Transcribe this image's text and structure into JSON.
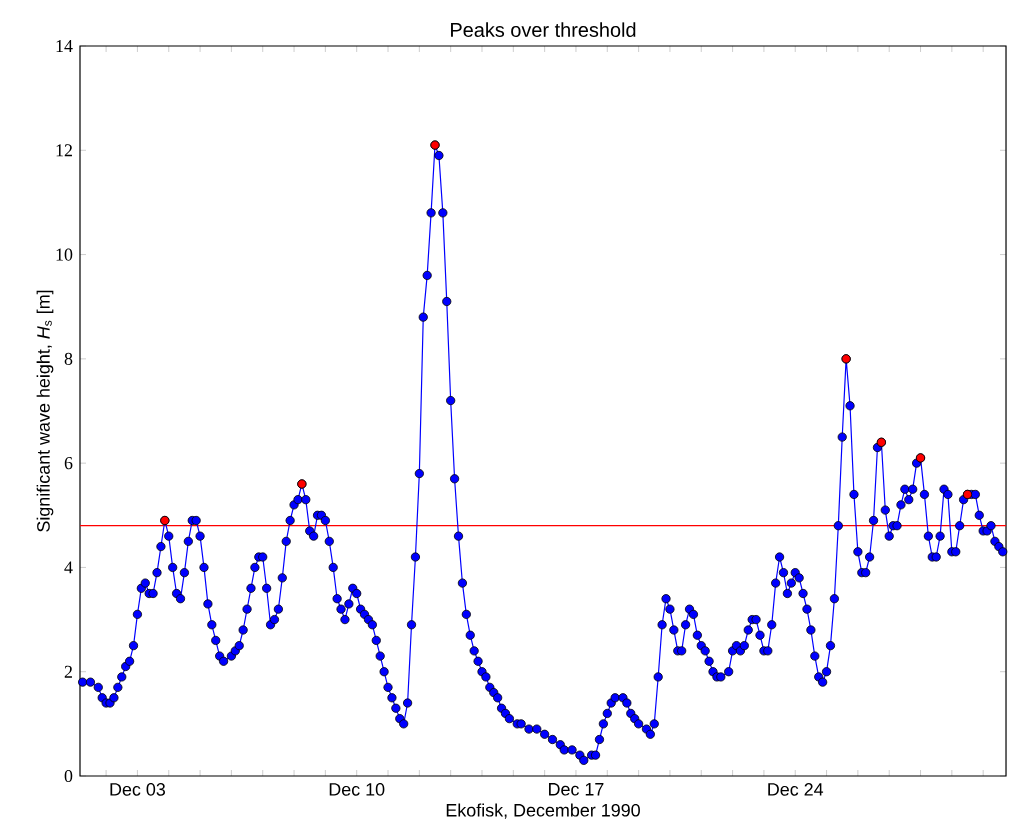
{
  "chart_data": {
    "type": "line",
    "title": "Peaks over threshold",
    "xlabel": "Ekofisk, December 1990",
    "ylabel": "Significant wave height, *H*$_{s}$ [m]",
    "xlim": [
      "1990-12-01T04:00",
      "1990-12-30T17:30"
    ],
    "ylim": [
      0,
      14
    ],
    "yticks": [
      0,
      2,
      4,
      6,
      8,
      10,
      12,
      14
    ],
    "xticks": [
      {
        "value": "1990-12-02",
        "label": null
      },
      {
        "value": "1990-12-03",
        "label": "Dec 03"
      },
      {
        "value": "1990-12-04",
        "label": null
      },
      {
        "value": "1990-12-05",
        "label": null
      },
      {
        "value": "1990-12-06",
        "label": null
      },
      {
        "value": "1990-12-07",
        "label": null
      },
      {
        "value": "1990-12-08",
        "label": null
      },
      {
        "value": "1990-12-09",
        "label": null
      },
      {
        "value": "1990-12-10",
        "label": "Dec 10"
      },
      {
        "value": "1990-12-11",
        "label": null
      },
      {
        "value": "1990-12-12",
        "label": null
      },
      {
        "value": "1990-12-13",
        "label": null
      },
      {
        "value": "1990-12-14",
        "label": null
      },
      {
        "value": "1990-12-15",
        "label": null
      },
      {
        "value": "1990-12-16",
        "label": null
      },
      {
        "value": "1990-12-17",
        "label": "Dec 17"
      },
      {
        "value": "1990-12-18",
        "label": null
      },
      {
        "value": "1990-12-19",
        "label": null
      },
      {
        "value": "1990-12-20",
        "label": null
      },
      {
        "value": "1990-12-21",
        "label": null
      },
      {
        "value": "1990-12-22",
        "label": null
      },
      {
        "value": "1990-12-23",
        "label": null
      },
      {
        "value": "1990-12-24",
        "label": "Dec 24"
      },
      {
        "value": "1990-12-25",
        "label": null
      },
      {
        "value": "1990-12-26",
        "label": null
      },
      {
        "value": "1990-12-27",
        "label": null
      },
      {
        "value": "1990-12-28",
        "label": null
      },
      {
        "value": "1990-12-29",
        "label": null
      },
      {
        "value": "1990-12-30",
        "label": null
      }
    ],
    "grid": false,
    "ref_lines": [
      {
        "axis": "y",
        "value": 4.8,
        "color": "#ff0000",
        "line_style": "solid"
      }
    ],
    "series": [
      {
        "color": "#0000ff",
        "marker": "circle",
        "line_style": "solid",
        "x": [
          "1990-12-01T06:00",
          "1990-12-01T12:00",
          "1990-12-01T18:00",
          "1990-12-01T21:00",
          "1990-12-02T00:00",
          "1990-12-02T03:00",
          "1990-12-02T06:00",
          "1990-12-02T09:00",
          "1990-12-02T12:00",
          "1990-12-02T15:00",
          "1990-12-02T18:00",
          "1990-12-02T21:00",
          "1990-12-03T00:00",
          "1990-12-03T03:00",
          "1990-12-03T06:00",
          "1990-12-03T09:00",
          "1990-12-03T12:00",
          "1990-12-03T15:00",
          "1990-12-03T18:00",
          "1990-12-03T21:00",
          "1990-12-04T00:00",
          "1990-12-04T03:00",
          "1990-12-04T06:00",
          "1990-12-04T09:00",
          "1990-12-04T12:00",
          "1990-12-04T15:00",
          "1990-12-04T18:00",
          "1990-12-04T21:00",
          "1990-12-05T00:00",
          "1990-12-05T03:00",
          "1990-12-05T06:00",
          "1990-12-05T09:00",
          "1990-12-05T12:00",
          "1990-12-05T15:00",
          "1990-12-05T18:00",
          "1990-12-06T00:00",
          "1990-12-06T03:00",
          "1990-12-06T06:00",
          "1990-12-06T09:00",
          "1990-12-06T12:00",
          "1990-12-06T15:00",
          "1990-12-06T18:00",
          "1990-12-06T21:00",
          "1990-12-07T00:00",
          "1990-12-07T03:00",
          "1990-12-07T06:00",
          "1990-12-07T09:00",
          "1990-12-07T12:00",
          "1990-12-07T15:00",
          "1990-12-07T18:00",
          "1990-12-07T21:00",
          "1990-12-08T00:00",
          "1990-12-08T03:00",
          "1990-12-08T06:00",
          "1990-12-08T09:00",
          "1990-12-08T12:00",
          "1990-12-08T15:00",
          "1990-12-08T18:00",
          "1990-12-08T21:00",
          "1990-12-09T00:00",
          "1990-12-09T03:00",
          "1990-12-09T06:00",
          "1990-12-09T09:00",
          "1990-12-09T12:00",
          "1990-12-09T15:00",
          "1990-12-09T18:00",
          "1990-12-09T21:00",
          "1990-12-10T00:00",
          "1990-12-10T03:00",
          "1990-12-10T06:00",
          "1990-12-10T09:00",
          "1990-12-10T12:00",
          "1990-12-10T15:00",
          "1990-12-10T18:00",
          "1990-12-10T21:00",
          "1990-12-11T00:00",
          "1990-12-11T03:00",
          "1990-12-11T06:00",
          "1990-12-11T09:00",
          "1990-12-11T12:00",
          "1990-12-11T15:00",
          "1990-12-11T18:00",
          "1990-12-11T21:00",
          "1990-12-12T00:00",
          "1990-12-12T03:00",
          "1990-12-12T06:00",
          "1990-12-12T09:00",
          "1990-12-12T12:00",
          "1990-12-12T15:00",
          "1990-12-12T18:00",
          "1990-12-12T21:00",
          "1990-12-13T00:00",
          "1990-12-13T03:00",
          "1990-12-13T06:00",
          "1990-12-13T09:00",
          "1990-12-13T12:00",
          "1990-12-13T15:00",
          "1990-12-13T18:00",
          "1990-12-13T21:00",
          "1990-12-14T00:00",
          "1990-12-14T03:00",
          "1990-12-14T06:00",
          "1990-12-14T09:00",
          "1990-12-14T12:00",
          "1990-12-14T15:00",
          "1990-12-14T18:00",
          "1990-12-14T21:00",
          "1990-12-15T03:00",
          "1990-12-15T06:00",
          "1990-12-15T12:00",
          "1990-12-15T18:00",
          "1990-12-16T00:00",
          "1990-12-16T06:00",
          "1990-12-16T12:00",
          "1990-12-16T15:00",
          "1990-12-16T21:00",
          "1990-12-17T03:00",
          "1990-12-17T06:00",
          "1990-12-17T12:00",
          "1990-12-17T15:00",
          "1990-12-17T18:00",
          "1990-12-17T21:00",
          "1990-12-18T00:00",
          "1990-12-18T03:00",
          "1990-12-18T06:00",
          "1990-12-18T12:00",
          "1990-12-18T15:00",
          "1990-12-18T18:00",
          "1990-12-18T21:00",
          "1990-12-19T00:00",
          "1990-12-19T06:00",
          "1990-12-19T09:00",
          "1990-12-19T12:00",
          "1990-12-19T15:00",
          "1990-12-19T18:00",
          "1990-12-19T21:00",
          "1990-12-20T00:00",
          "1990-12-20T03:00",
          "1990-12-20T06:00",
          "1990-12-20T09:00",
          "1990-12-20T12:00",
          "1990-12-20T15:00",
          "1990-12-20T18:00",
          "1990-12-20T21:00",
          "1990-12-21T00:00",
          "1990-12-21T03:00",
          "1990-12-21T06:00",
          "1990-12-21T09:00",
          "1990-12-21T12:00",
          "1990-12-21T15:00",
          "1990-12-21T21:00",
          "1990-12-22T00:00",
          "1990-12-22T03:00",
          "1990-12-22T06:00",
          "1990-12-22T09:00",
          "1990-12-22T12:00",
          "1990-12-22T15:00",
          "1990-12-22T18:00",
          "1990-12-22T21:00",
          "1990-12-23T00:00",
          "1990-12-23T03:00",
          "1990-12-23T06:00",
          "1990-12-23T09:00",
          "1990-12-23T12:00",
          "1990-12-23T15:00",
          "1990-12-23T18:00",
          "1990-12-23T21:00",
          "1990-12-24T00:00",
          "1990-12-24T03:00",
          "1990-12-24T06:00",
          "1990-12-24T09:00",
          "1990-12-24T12:00",
          "1990-12-24T15:00",
          "1990-12-24T18:00",
          "1990-12-24T21:00",
          "1990-12-25T00:00",
          "1990-12-25T03:00",
          "1990-12-25T06:00",
          "1990-12-25T09:00",
          "1990-12-25T12:00",
          "1990-12-25T15:00",
          "1990-12-25T18:00",
          "1990-12-25T21:00",
          "1990-12-26T00:00",
          "1990-12-26T03:00",
          "1990-12-26T06:00",
          "1990-12-26T09:00",
          "1990-12-26T12:00",
          "1990-12-26T15:00",
          "1990-12-26T18:00",
          "1990-12-26T21:00",
          "1990-12-27T00:00",
          "1990-12-27T03:00",
          "1990-12-27T06:00",
          "1990-12-27T09:00",
          "1990-12-27T12:00",
          "1990-12-27T15:00",
          "1990-12-27T18:00",
          "1990-12-27T21:00",
          "1990-12-28T00:00",
          "1990-12-28T03:00",
          "1990-12-28T06:00",
          "1990-12-28T09:00",
          "1990-12-28T12:00",
          "1990-12-28T15:00",
          "1990-12-28T18:00",
          "1990-12-28T21:00",
          "1990-12-29T00:00",
          "1990-12-29T03:00",
          "1990-12-29T06:00",
          "1990-12-29T09:00",
          "1990-12-29T12:00",
          "1990-12-29T15:00",
          "1990-12-29T18:00",
          "1990-12-29T21:00",
          "1990-12-30T00:00",
          "1990-12-30T03:00",
          "1990-12-30T06:00",
          "1990-12-30T09:00",
          "1990-12-30T12:00",
          "1990-12-30T15:00"
        ],
        "values": [
          1.8,
          1.8,
          1.7,
          1.5,
          1.4,
          1.4,
          1.5,
          1.7,
          1.9,
          2.1,
          2.2,
          2.5,
          3.1,
          3.6,
          3.7,
          3.5,
          3.5,
          3.9,
          4.4,
          4.9,
          4.6,
          4.0,
          3.5,
          3.4,
          3.9,
          4.5,
          4.9,
          4.9,
          4.6,
          4.0,
          3.3,
          2.9,
          2.6,
          2.3,
          2.2,
          2.3,
          2.4,
          2.5,
          2.8,
          3.2,
          3.6,
          4.0,
          4.2,
          4.2,
          3.6,
          2.9,
          3.0,
          3.2,
          3.8,
          4.5,
          4.9,
          5.2,
          5.3,
          5.6,
          5.3,
          4.7,
          4.6,
          5.0,
          5.0,
          4.9,
          4.5,
          4.0,
          3.4,
          3.2,
          3.0,
          3.3,
          3.6,
          3.5,
          3.2,
          3.1,
          3.0,
          2.9,
          2.6,
          2.3,
          2.0,
          1.7,
          1.5,
          1.3,
          1.1,
          1.0,
          1.4,
          2.9,
          4.2,
          5.8,
          8.8,
          9.6,
          10.8,
          12.1,
          11.9,
          10.8,
          9.1,
          7.2,
          5.7,
          4.6,
          3.7,
          3.1,
          2.7,
          2.4,
          2.2,
          2.0,
          1.9,
          1.7,
          1.6,
          1.5,
          1.3,
          1.2,
          1.1,
          1.0,
          1.0,
          0.9,
          0.9,
          0.8,
          0.7,
          0.6,
          0.5,
          0.5,
          0.4,
          0.3,
          0.4,
          0.4,
          0.7,
          1.0,
          1.2,
          1.4,
          1.5,
          1.5,
          1.4,
          1.2,
          1.1,
          1.0,
          0.9,
          0.8,
          1.0,
          1.9,
          2.9,
          3.4,
          3.2,
          2.8,
          2.4,
          2.4,
          2.9,
          3.2,
          3.1,
          2.7,
          2.5,
          2.4,
          2.2,
          2.0,
          1.9,
          1.9,
          2.0,
          2.4,
          2.5,
          2.4,
          2.5,
          2.8,
          3.0,
          3.0,
          2.7,
          2.4,
          2.4,
          2.9,
          3.7,
          4.2,
          3.9,
          3.5,
          3.7,
          3.9,
          3.8,
          3.5,
          3.2,
          2.8,
          2.3,
          1.9,
          1.8,
          2.0,
          2.5,
          3.4,
          4.8,
          6.5,
          8.0,
          7.1,
          5.4,
          4.3,
          3.9,
          3.9,
          4.2,
          4.9,
          6.3,
          6.4,
          5.1,
          4.6,
          4.8,
          4.8,
          5.2,
          5.5,
          5.3,
          5.5,
          6.0,
          6.1,
          5.4,
          4.6,
          4.2,
          4.2,
          4.6,
          5.5,
          5.4,
          4.3,
          4.3,
          4.8,
          5.3,
          5.4,
          5.4,
          5.4,
          5.0,
          4.7,
          4.7,
          4.8,
          4.5,
          4.4,
          4.3
        ]
      },
      {
        "type": "scatter",
        "color": "#ff0000",
        "marker": "circle",
        "x": [
          "1990-12-03T21:00",
          "1990-12-08T06:00",
          "1990-12-12T12:00",
          "1990-12-25T15:00",
          "1990-12-26T18:00",
          "1990-12-28T00:00",
          "1990-12-29T12:00"
        ],
        "values": [
          4.9,
          5.6,
          12.1,
          8.0,
          6.4,
          6.1,
          5.4
        ]
      }
    ]
  }
}
